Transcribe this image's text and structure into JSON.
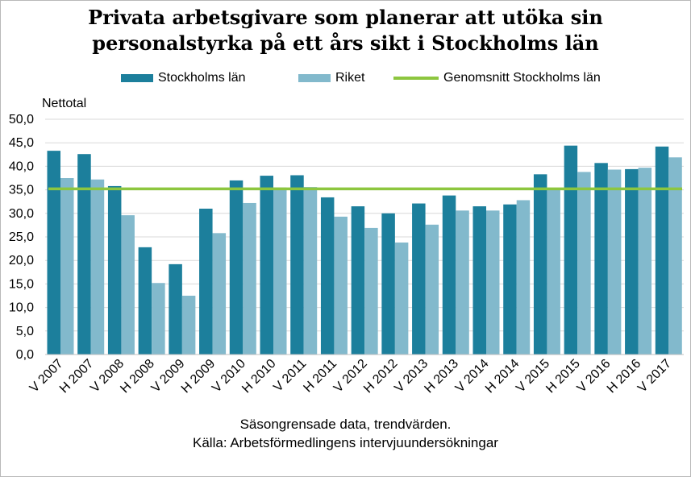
{
  "title_line1": "Privata arbetsgivare som planerar att utöka sin",
  "title_line2": "personalstyrka på ett års sikt i Stockholms län",
  "legend": {
    "series1": "Stockholms län",
    "series2": "Riket",
    "average": "Genomsnitt Stockholms län"
  },
  "colors": {
    "series1": "#1c7f9c",
    "series2": "#82b9cc",
    "average": "#8dc63f",
    "grid": "#d9d9d9"
  },
  "footnote_line1": "Säsongrensade data, trendvärden.",
  "footnote_line2": "Källa: Arbetsförmedlingens  intervjuundersökningar",
  "chart_data": {
    "type": "bar",
    "ylabel": "Nettotal",
    "ylim": [
      0,
      50
    ],
    "yticks": [
      "0,0",
      "5,0",
      "10,0",
      "15,0",
      "20,0",
      "25,0",
      "30,0",
      "35,0",
      "40,0",
      "45,0",
      "50,0"
    ],
    "grid": true,
    "legend_position": "top",
    "categories": [
      "V 2007",
      "H 2007",
      "V 2008",
      "H 2008",
      "V 2009",
      "H 2009",
      "V 2010",
      "H 2010",
      "V 2011",
      "H 2011",
      "V 2012",
      "H 2012",
      "V 2013",
      "H 2013",
      "V 2014",
      "H 2014",
      "V 2015",
      "H 2015",
      "V 2016",
      "H 2016",
      "V 2017"
    ],
    "series": [
      {
        "name": "Stockholms län",
        "values": [
          43.3,
          42.6,
          35.8,
          22.8,
          19.2,
          31.0,
          37.0,
          38.0,
          38.1,
          33.4,
          31.5,
          30.0,
          32.1,
          33.8,
          31.5,
          31.9,
          38.3,
          44.4,
          40.7,
          39.4,
          44.2
        ]
      },
      {
        "name": "Riket",
        "values": [
          37.5,
          37.2,
          29.6,
          15.2,
          12.5,
          25.8,
          32.2,
          35.5,
          35.6,
          29.3,
          26.9,
          23.8,
          27.6,
          30.6,
          30.6,
          32.8,
          35.4,
          38.8,
          39.3,
          39.7,
          41.9
        ]
      }
    ],
    "average_line": {
      "name": "Genomsnitt Stockholms län",
      "value": 35.2
    }
  }
}
